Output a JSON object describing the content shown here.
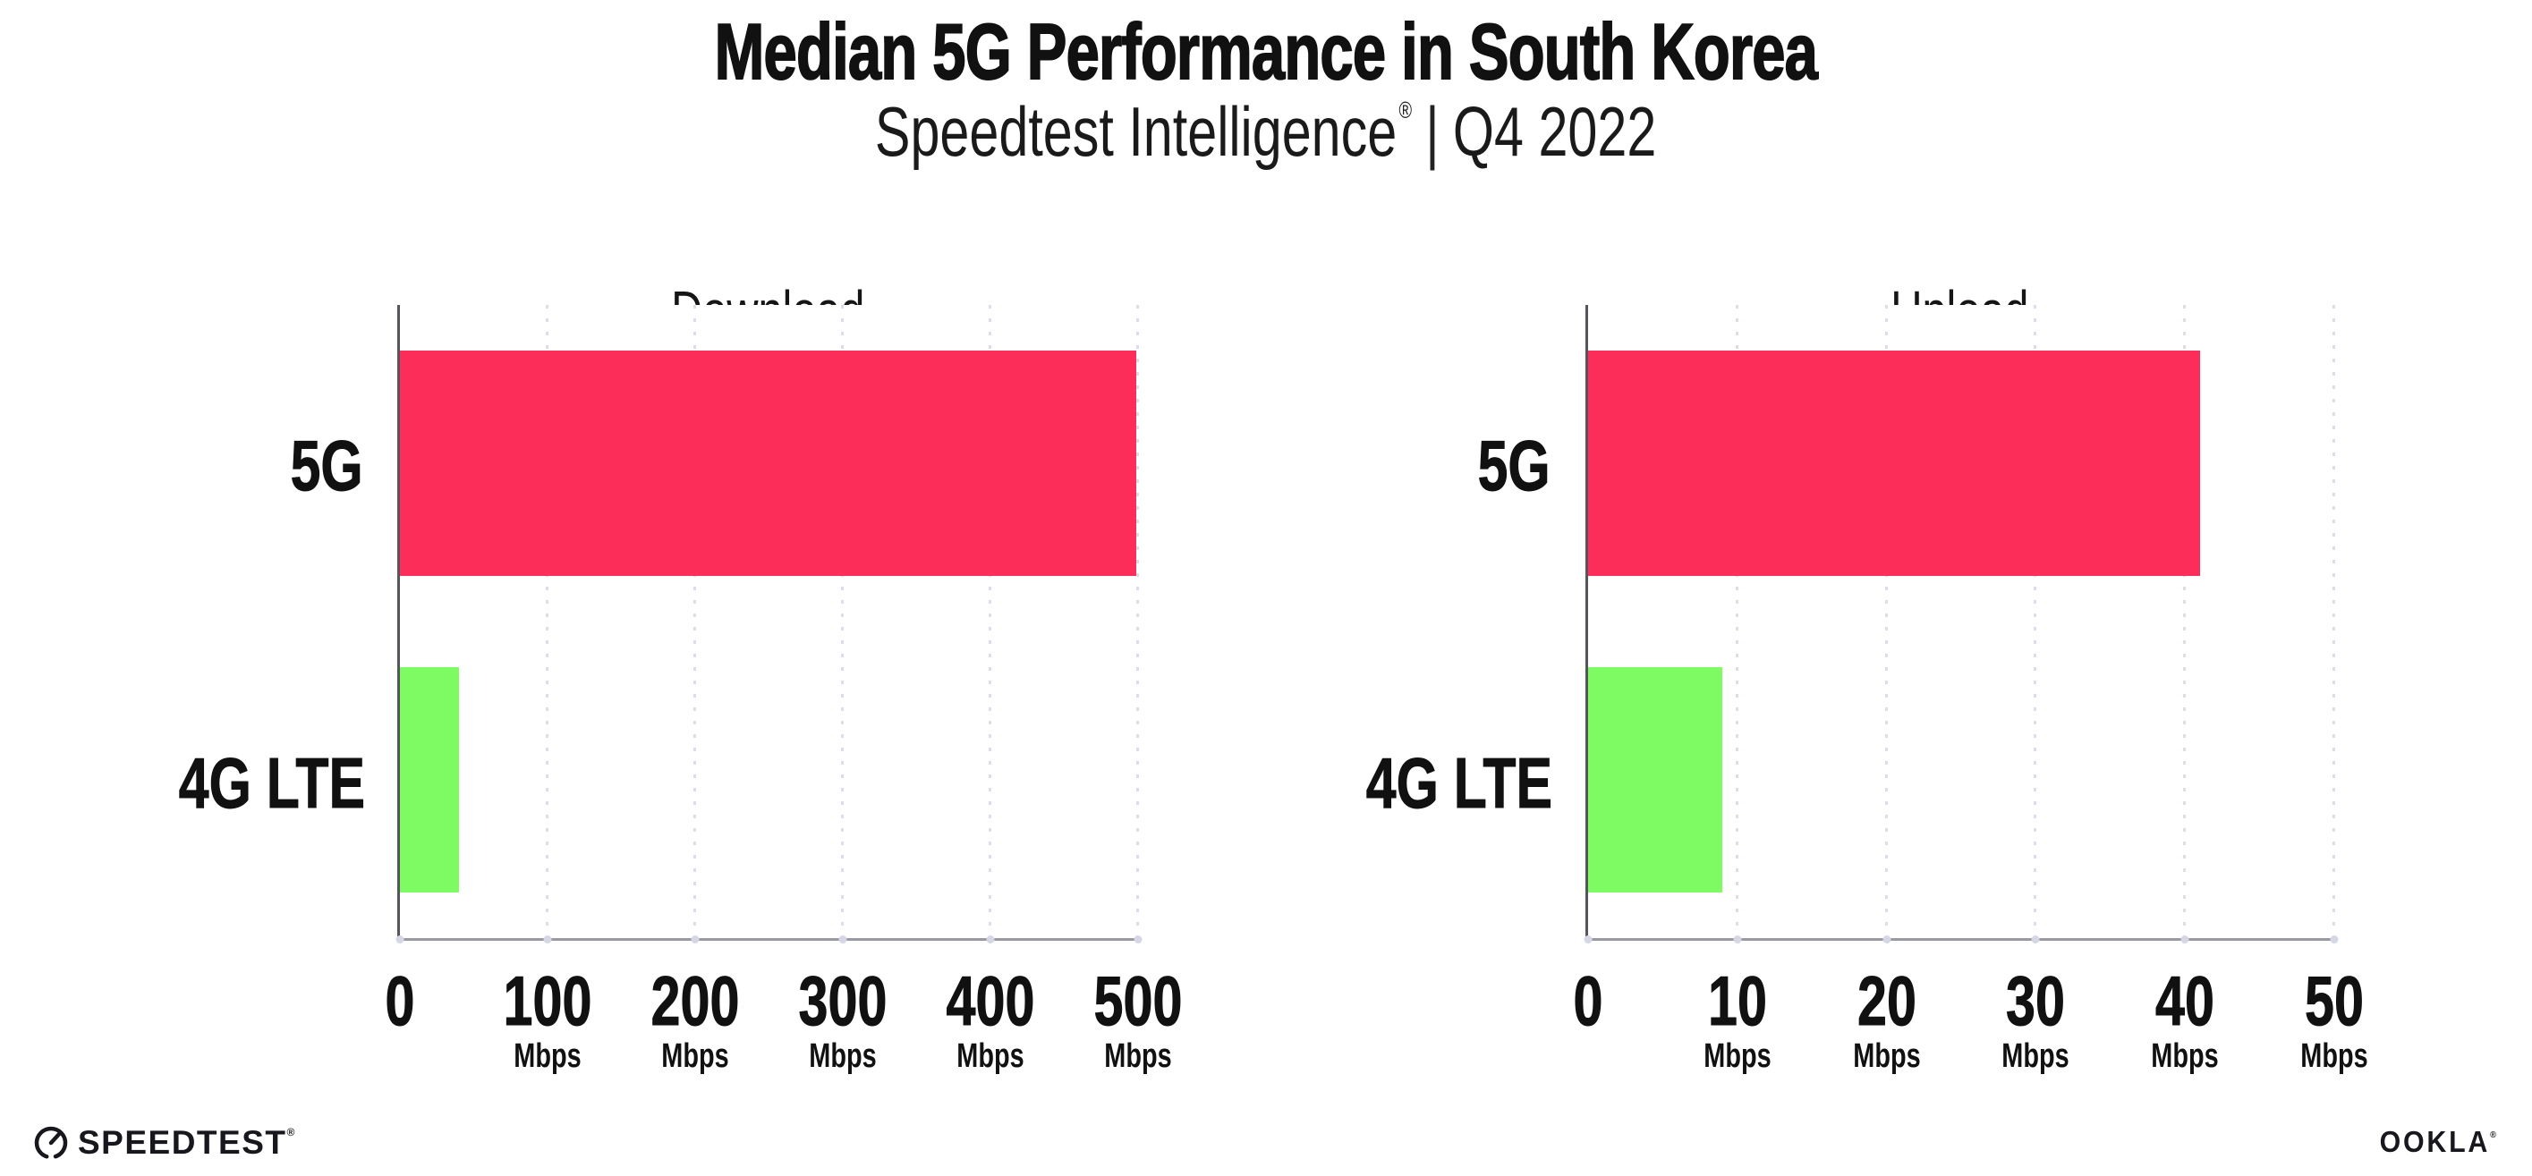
{
  "header": {
    "title": "Median 5G Performance in South Korea",
    "subtitle": {
      "brand": "Speedtest Intelligence",
      "registered_mark": "®",
      "separator": "|",
      "period": "Q4 2022"
    }
  },
  "chart_data": [
    {
      "type": "bar",
      "orientation": "horizontal",
      "title": "Download",
      "categories": [
        "5G",
        "4G LTE"
      ],
      "values": [
        499,
        40
      ],
      "unit": "Mbps",
      "xlabel": "",
      "ylabel": "",
      "xlim": [
        0,
        500
      ],
      "xticks": [
        0,
        100,
        200,
        300,
        400,
        500
      ],
      "bar_colors": [
        "#FD2D59",
        "#7EFB63"
      ],
      "grid": "vertical-dotted",
      "legend_position": "none"
    },
    {
      "type": "bar",
      "orientation": "horizontal",
      "title": "Upload",
      "categories": [
        "5G",
        "4G LTE"
      ],
      "values": [
        41,
        9
      ],
      "unit": "Mbps",
      "xlabel": "",
      "ylabel": "",
      "xlim": [
        0,
        50
      ],
      "xticks": [
        0,
        10,
        20,
        30,
        40,
        50
      ],
      "bar_colors": [
        "#FD2D59",
        "#7EFB63"
      ],
      "grid": "vertical-dotted",
      "legend_position": "none"
    }
  ],
  "footer": {
    "speedtest": {
      "label": "SPEEDTEST",
      "mark": "®",
      "icon": "speedtest-gauge-icon"
    },
    "ookla": {
      "label": "OOKLA",
      "mark": "®"
    }
  },
  "colors": {
    "bar_5g": "#FD2D59",
    "bar_4g_lte": "#7EFB63",
    "y_axis_line": "#55555e",
    "x_axis_line": "#9a9aa4",
    "gridline": "#dcdde9",
    "text": "#111111",
    "logo": "#17171d"
  }
}
